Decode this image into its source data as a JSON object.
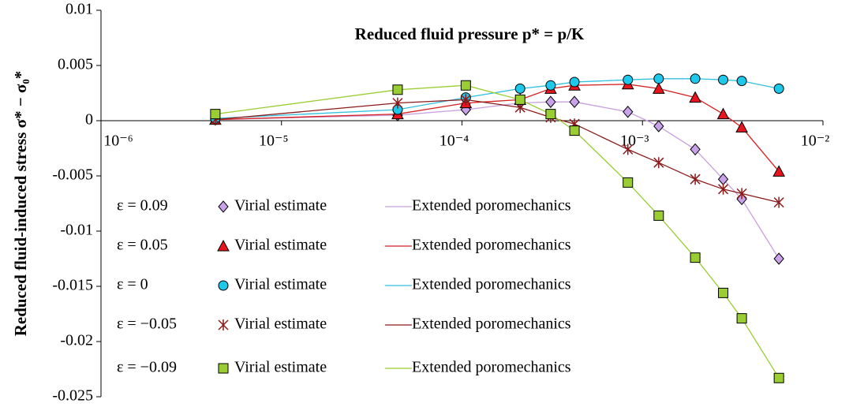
{
  "chart_data": {
    "type": "scatter-line",
    "title": "Reduced fluid pressure p* = p/K",
    "y_label": "Reduced fluid-induced stress σ* − σ₀*",
    "log_x": true,
    "xlim": [
      1e-06,
      0.01
    ],
    "xticks": [
      {
        "value": 1e-06,
        "label": "10⁻⁶"
      },
      {
        "value": 1e-05,
        "label": "10⁻⁵"
      },
      {
        "value": 0.0001,
        "label": "10⁻⁴"
      },
      {
        "value": 0.001,
        "label": "10⁻³"
      },
      {
        "value": 0.01,
        "label": "10⁻²"
      }
    ],
    "ylim": [
      -0.025,
      0.01
    ],
    "yticks": [
      0.01,
      0.005,
      0,
      -0.005,
      -0.01,
      -0.015,
      -0.02,
      -0.025
    ],
    "x": [
      4.3e-06,
      4.4e-05,
      0.000105,
      0.00021,
      0.00031,
      0.00042,
      0.00083,
      0.00123,
      0.00196,
      0.0028,
      0.00355,
      0.0057
    ],
    "series": [
      {
        "label": "ε = 0.09",
        "name": "Virial estimate",
        "line_name": "Extended poromechanics",
        "marker": "diamond",
        "color": "#c9a3ea",
        "line_color": "#c9a0e0",
        "values": [
          0.0001,
          0.0005,
          0.001,
          0.0016,
          0.0017,
          0.0017,
          0.0008,
          -0.0005,
          -0.0026,
          -0.0053,
          -0.0071,
          -0.0125
        ]
      },
      {
        "label": "ε = 0.05",
        "name": "Virial estimate",
        "line_name": "Extended poromechanics",
        "marker": "triangle",
        "color": "#e8141e",
        "line_color": "#d62020",
        "values": [
          0.0001,
          0.0006,
          0.0016,
          0.0019,
          0.0029,
          0.0032,
          0.0033,
          0.0029,
          0.0021,
          0.0006,
          -0.0006,
          -0.0046
        ]
      },
      {
        "label": "ε = 0",
        "name": "Virial estimate",
        "line_name": "Extended poromechanics",
        "marker": "circle",
        "color": "#1ec8ea",
        "line_color": "#30c0e0",
        "values": [
          0.0002,
          0.001,
          0.0021,
          0.0029,
          0.0032,
          0.0035,
          0.0037,
          0.0038,
          0.0038,
          0.0037,
          0.0036,
          0.0029
        ]
      },
      {
        "label": "ε = −0.05",
        "name": "Virial estimate",
        "line_name": "Extended poromechanics",
        "marker": "asterisk",
        "color": "#8b1a1a",
        "line_color": "#8b1a1a",
        "values": [
          0.0001,
          0.0016,
          0.0019,
          0.0012,
          0.0003,
          -0.0003,
          -0.0026,
          -0.0038,
          -0.0053,
          -0.0062,
          -0.0066,
          -0.0074
        ]
      },
      {
        "label": "ε = −0.09",
        "name": "Virial estimate",
        "line_name": "Extended poromechanics",
        "marker": "square",
        "color": "#9acd32",
        "line_color": "#9acd32",
        "values": [
          0.0006,
          0.0028,
          0.0032,
          0.0019,
          0.0006,
          -0.0009,
          -0.0056,
          -0.0086,
          -0.0124,
          -0.0156,
          -0.0179,
          -0.0233
        ]
      }
    ]
  }
}
